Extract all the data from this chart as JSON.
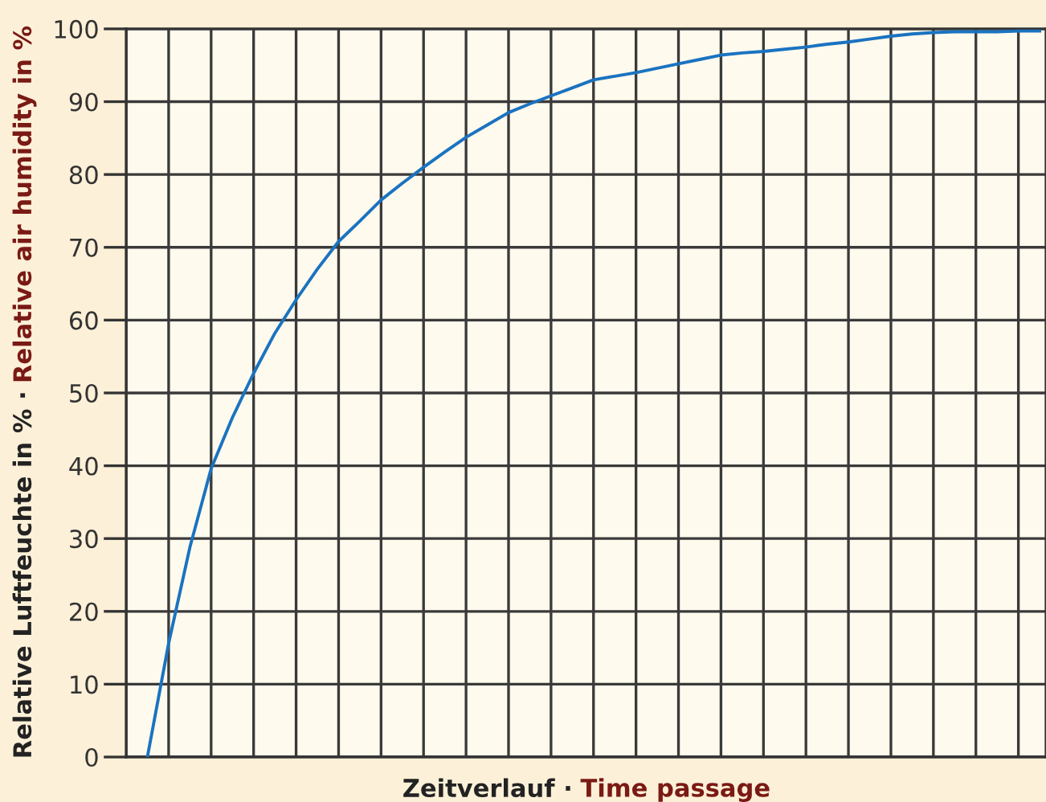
{
  "chart_data": {
    "type": "line",
    "xlabel": "Zeitverlauf · Time passage",
    "ylabel": "Relative Luftfeuchte in % · Relative air humidity in %",
    "categories": [
      null,
      null,
      null,
      null,
      null,
      null,
      null,
      null,
      null,
      null,
      null,
      null,
      null,
      null,
      null,
      null,
      null,
      null,
      null,
      null,
      null,
      null,
      null,
      null,
      null,
      null,
      null,
      null,
      null,
      null,
      null,
      null,
      null,
      null,
      null,
      null,
      null,
      null,
      null,
      null,
      null,
      null,
      null
    ],
    "series": [
      {
        "color": "#1a73c0",
        "values": [
          0,
          15.6,
          28.8,
          39.6,
          46.6,
          52.7,
          58.2,
          62.8,
          67.0,
          70.8,
          73.6,
          76.5,
          78.8,
          81.0,
          83.1,
          85.1,
          86.8,
          88.5,
          89.7,
          90.8,
          91.9,
          93.0,
          93.5,
          94.0,
          94.6,
          95.2,
          95.8,
          96.4,
          96.7,
          96.9,
          97.2,
          97.5,
          97.9,
          98.2,
          98.6,
          99.0,
          99.3,
          99.5,
          99.6,
          99.6,
          99.6,
          99.7,
          99.7
        ]
      }
    ],
    "ylim": [
      0,
      100
    ],
    "yticks": [
      0,
      10,
      20,
      30,
      40,
      50,
      60,
      70,
      80,
      90,
      100
    ],
    "grid": true,
    "line_style": "solid",
    "marker": "none"
  }
}
